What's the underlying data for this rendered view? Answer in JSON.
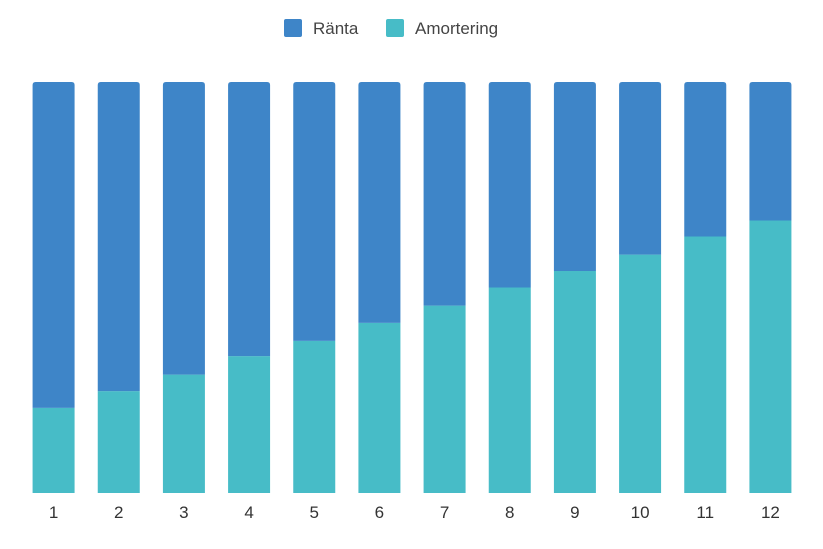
{
  "chart_data": {
    "type": "bar",
    "stacked": true,
    "normalized": true,
    "categories": [
      "1",
      "2",
      "3",
      "4",
      "5",
      "6",
      "7",
      "8",
      "9",
      "10",
      "11",
      "12"
    ],
    "series": [
      {
        "name": "Amortering",
        "color": "#47BCC7",
        "values": [
          20.7,
          24.8,
          28.8,
          33.3,
          37.0,
          41.4,
          45.6,
          50.0,
          54.0,
          58.0,
          62.4,
          66.3
        ]
      },
      {
        "name": "Ränta",
        "color": "#3E85C8",
        "values": [
          79.3,
          75.2,
          71.2,
          66.7,
          63.0,
          58.6,
          54.4,
          50.0,
          46.0,
          42.0,
          37.6,
          33.7
        ]
      }
    ],
    "legend": [
      "Ränta",
      "Amortering"
    ],
    "legend_position": "top-center",
    "ylim": [
      0,
      100
    ],
    "grid": false,
    "y_axis_visible": false,
    "title": "",
    "xlabel": "",
    "ylabel": ""
  }
}
